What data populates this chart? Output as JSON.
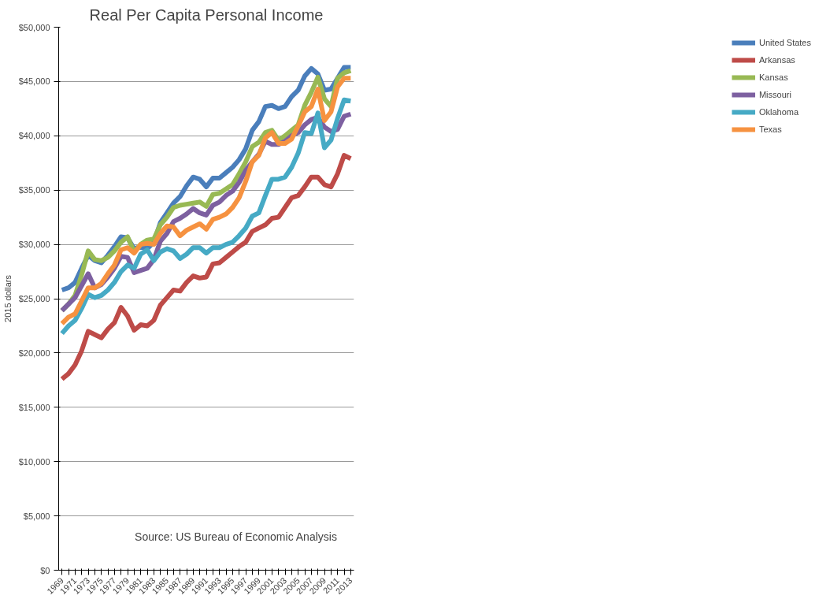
{
  "chart_data": {
    "type": "line",
    "title": "Real Per Capita Personal Income",
    "ylabel": "2015 dollars",
    "annotations": [
      "Source: US Bureau of Economic Analysis"
    ],
    "categories": [
      "1969",
      null,
      "1971",
      null,
      "1973",
      null,
      "1975",
      null,
      "1977",
      null,
      "1979",
      null,
      "1981",
      null,
      "1983",
      null,
      "1985",
      null,
      "1987",
      null,
      "1989",
      null,
      "1991",
      null,
      "1993",
      null,
      "1995",
      null,
      "1997",
      null,
      "1999",
      null,
      "2001",
      null,
      "2003",
      null,
      "2005",
      null,
      "2007",
      null,
      "2009",
      null,
      "2011",
      null,
      "2013"
    ],
    "series": [
      {
        "name": "United States",
        "color": "#4a7ebb",
        "values": [
          25800,
          26000,
          26500,
          27800,
          29000,
          28500,
          28300,
          29000,
          29800,
          30700,
          30600,
          29600,
          29800,
          29600,
          30200,
          32000,
          32900,
          33800,
          34400,
          35400,
          36200,
          36000,
          35300,
          36100,
          36100,
          36600,
          37100,
          37800,
          38800,
          40500,
          41300,
          42700,
          42800,
          42500,
          42700,
          43600,
          44200,
          45500,
          46200,
          45700,
          44200,
          44300,
          45300,
          46300,
          46300
        ]
      },
      {
        "name": "Arkansas",
        "color": "#be4b48",
        "values": [
          17600,
          18100,
          18900,
          20200,
          22000,
          21700,
          21400,
          22200,
          22800,
          24200,
          23400,
          22100,
          22600,
          22500,
          23000,
          24400,
          25100,
          25800,
          25700,
          26500,
          27100,
          26900,
          27000,
          28200,
          28300,
          28800,
          29300,
          29800,
          30200,
          31200,
          31500,
          31800,
          32400,
          32500,
          33400,
          34300,
          34500,
          35300,
          36200,
          36200,
          35500,
          35300,
          36500,
          38200,
          37900
        ]
      },
      {
        "name": "Kansas",
        "color": "#98b954",
        "values": [
          23900,
          24500,
          25300,
          27200,
          29400,
          28600,
          28500,
          28800,
          29400,
          30200,
          30700,
          29300,
          30000,
          30400,
          30500,
          31800,
          32500,
          33400,
          33600,
          33700,
          33800,
          33900,
          33500,
          34600,
          34700,
          35100,
          35500,
          36500,
          37600,
          39000,
          39400,
          40300,
          40500,
          39600,
          40000,
          40500,
          41000,
          42800,
          44000,
          45400,
          43400,
          42700,
          45300,
          45800,
          46000
        ]
      },
      {
        "name": "Missouri",
        "color": "#7d60a0",
        "values": [
          23900,
          24500,
          25100,
          26200,
          27300,
          26000,
          26300,
          27000,
          27800,
          28900,
          28800,
          27400,
          27600,
          27800,
          28600,
          30300,
          31000,
          32100,
          32400,
          32800,
          33300,
          32900,
          32700,
          33600,
          33900,
          34500,
          34900,
          35700,
          36800,
          37600,
          38300,
          39500,
          39200,
          39200,
          39500,
          40000,
          40300,
          41000,
          41500,
          41700,
          40800,
          40400,
          40600,
          41800,
          42000
        ]
      },
      {
        "name": "Oklahoma",
        "color": "#46aac5",
        "values": [
          21800,
          22500,
          23000,
          24100,
          25400,
          25100,
          25300,
          25800,
          26500,
          27500,
          28100,
          27800,
          29100,
          29500,
          28500,
          29300,
          29600,
          29400,
          28700,
          29100,
          29700,
          29700,
          29200,
          29700,
          29700,
          30000,
          30200,
          30800,
          31500,
          32600,
          32900,
          34500,
          36000,
          36000,
          36200,
          37100,
          38400,
          40300,
          40200,
          42100,
          38900,
          39600,
          41600,
          43300,
          43200
        ]
      },
      {
        "name": "Texas",
        "color": "#f69240",
        "values": [
          22700,
          23300,
          23600,
          24800,
          26000,
          26000,
          26400,
          27300,
          28100,
          29500,
          29700,
          29200,
          30000,
          30100,
          30000,
          31000,
          31700,
          31600,
          30800,
          31300,
          31600,
          31900,
          31400,
          32300,
          32500,
          32800,
          33400,
          34300,
          35800,
          37600,
          38200,
          39800,
          40300,
          39300,
          39300,
          39700,
          40900,
          42200,
          42700,
          44300,
          41400,
          42200,
          44500,
          45300,
          45300
        ]
      }
    ],
    "ylim": [
      0,
      50000
    ],
    "yticks": [
      {
        "value": 0,
        "label": "$0"
      },
      {
        "value": 5000,
        "label": "$5,000"
      },
      {
        "value": 10000,
        "label": "$10,000"
      },
      {
        "value": 15000,
        "label": "$15,000"
      },
      {
        "value": 20000,
        "label": "$20,000"
      },
      {
        "value": 25000,
        "label": "$25,000"
      },
      {
        "value": 30000,
        "label": "$30,000"
      },
      {
        "value": 35000,
        "label": "$35,000"
      },
      {
        "value": 40000,
        "label": "$40,000"
      },
      {
        "value": 45000,
        "label": "$45,000"
      },
      {
        "value": 50000,
        "label": "$50,000"
      }
    ],
    "grid": "y",
    "legend": "right",
    "marker": "none",
    "line_style": "solid"
  }
}
